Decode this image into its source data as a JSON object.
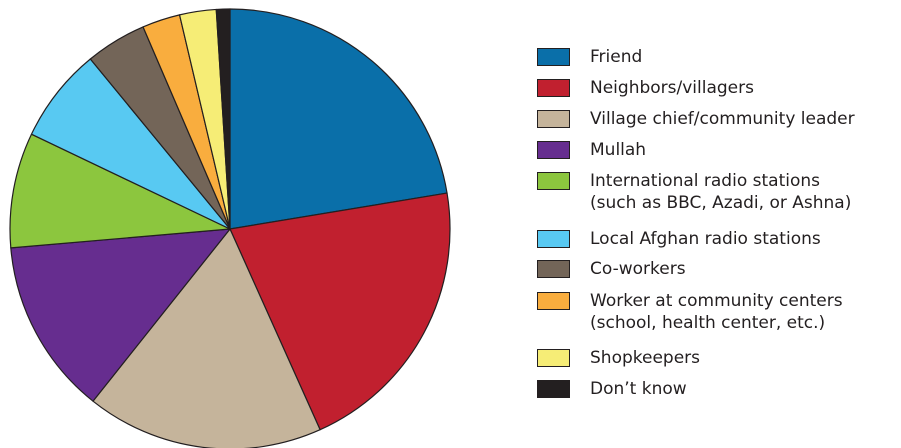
{
  "chart_data": {
    "type": "pie",
    "slices": [
      {
        "label": "Friend",
        "value": 22.5,
        "color": "#0a6fa9"
      },
      {
        "label": "Neighbors/villagers",
        "value": 21.0,
        "color": "#c1202f"
      },
      {
        "label": "Village chief/community leader",
        "value": 17.5,
        "color": "#c5b49b"
      },
      {
        "label": "Mullah",
        "value": 13.0,
        "color": "#662d8f"
      },
      {
        "label": "International radio stations (such as BBC, Azadi, or Ashna)",
        "value": 8.5,
        "color": "#8cc63e"
      },
      {
        "label": "Local Afghan radio stations",
        "value": 7.0,
        "color": "#58c9f2"
      },
      {
        "label": "Co-workers",
        "value": 4.5,
        "color": "#736558"
      },
      {
        "label": "Worker at community centers (school, health center, etc.)",
        "value": 2.8,
        "color": "#f9ad3e"
      },
      {
        "label": "Shopkeepers",
        "value": 2.7,
        "color": "#f6ed76"
      },
      {
        "label": "Don’t know",
        "value": 1.0,
        "color": "#231f20"
      }
    ],
    "start_angle": "12 o'clock",
    "direction": "clockwise",
    "legend_position": "right"
  },
  "legend": {
    "items": [
      {
        "lines": [
          "Friend"
        ]
      },
      {
        "lines": [
          "Neighbors/villagers"
        ]
      },
      {
        "lines": [
          "Village chief/community leader"
        ]
      },
      {
        "lines": [
          "Mullah"
        ]
      },
      {
        "lines": [
          "International radio stations",
          "(such as BBC, Azadi, or Ashna)"
        ]
      },
      {
        "lines": [
          "Local Afghan radio stations"
        ]
      },
      {
        "lines": [
          "Co-workers"
        ]
      },
      {
        "lines": [
          "Worker at community centers",
          "(school, health center, etc.)"
        ]
      },
      {
        "lines": [
          "Shopkeepers"
        ]
      },
      {
        "lines": [
          "Don’t know"
        ]
      }
    ]
  }
}
